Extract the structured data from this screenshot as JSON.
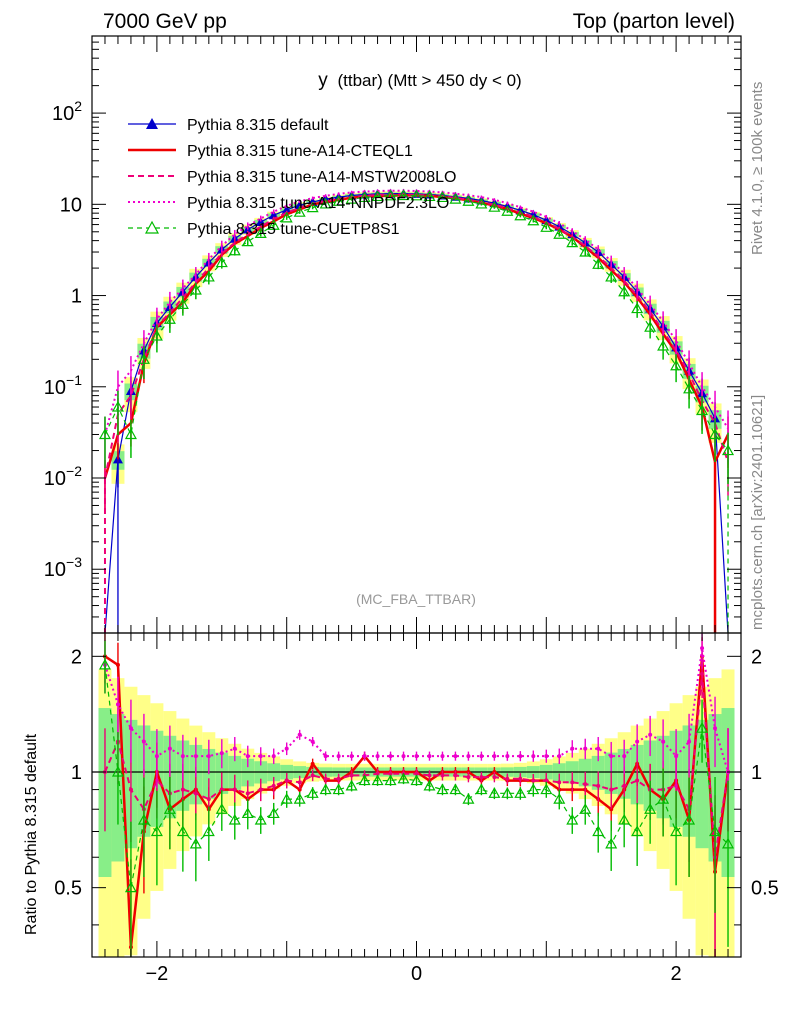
{
  "header": {
    "left": "7000 GeV pp",
    "right": "Top (parton level)"
  },
  "side_labels": {
    "rivet": "Rivet 4.1.0, ≥ 100k events",
    "mcplots": "mcplots.cern.ch [arXiv:2401.10621]"
  },
  "chart_data": {
    "type": "line",
    "title": "y (ttbar) (Mtt > 450 dy < 0)",
    "title_main": "y",
    "title_rest": "(ttbar) (Mtt > 450 dy < 0)",
    "watermark": "(MC_FBA_TTBAR)",
    "xlabel": "",
    "ylabel": "",
    "ratio_ylabel": "Ratio to Pythia 8.315 default",
    "xlim": [
      -2.5,
      2.5
    ],
    "ylim": [
      0.0002,
      700
    ],
    "yscale": "log",
    "ratio_ylim": [
      0.33,
      2.3
    ],
    "x_ticks": [
      -2,
      0,
      2
    ],
    "x_tick_labels": [
      "−2",
      "0",
      "2"
    ],
    "y_ticks": [
      0.001,
      0.01,
      0.1,
      1,
      10,
      100
    ],
    "y_tick_labels": [
      {
        "base": "10",
        "exp": "−3"
      },
      {
        "base": "10",
        "exp": "−2"
      },
      {
        "base": "10",
        "exp": "−1"
      },
      {
        "base": "1",
        "exp": ""
      },
      {
        "base": "10",
        "exp": ""
      },
      {
        "base": "10",
        "exp": "2"
      }
    ],
    "ratio_ticks": [
      0.5,
      1,
      2
    ],
    "ratio_tick_labels": [
      "0.5",
      "1",
      "2"
    ],
    "x": [
      -2.4,
      -2.3,
      -2.2,
      -2.1,
      -2.0,
      -1.9,
      -1.8,
      -1.7,
      -1.6,
      -1.5,
      -1.4,
      -1.3,
      -1.2,
      -1.1,
      -1.0,
      -0.9,
      -0.8,
      -0.7,
      -0.6,
      -0.5,
      -0.4,
      -0.3,
      -0.2,
      -0.1,
      0.0,
      0.1,
      0.2,
      0.3,
      0.4,
      0.5,
      0.6,
      0.7,
      0.8,
      0.9,
      1.0,
      1.1,
      1.2,
      1.3,
      1.4,
      1.5,
      1.6,
      1.7,
      1.8,
      1.9,
      2.0,
      2.1,
      2.2,
      2.3,
      2.4
    ],
    "series": [
      {
        "name": "Pythia 8.315 default",
        "color": "#0000cc",
        "style": "solid-triangle",
        "values": [
          0,
          0.016,
          0.09,
          0.25,
          0.5,
          0.75,
          1.1,
          1.6,
          2.3,
          3.2,
          4.2,
          5.3,
          6.4,
          7.6,
          8.7,
          9.8,
          10.6,
          11.4,
          12.0,
          12.5,
          12.8,
          13.0,
          13.1,
          13.1,
          13.0,
          12.8,
          12.5,
          12.1,
          11.6,
          11.0,
          10.3,
          9.5,
          8.6,
          7.7,
          6.7,
          5.7,
          4.7,
          3.8,
          3.0,
          2.2,
          1.6,
          1.1,
          0.72,
          0.46,
          0.27,
          0.15,
          0.085,
          0.045,
          0
        ]
      },
      {
        "name": "Pythia 8.315 tune-A14-CTEQL1",
        "color": "#ee0000",
        "style": "solid",
        "values": [
          0.01,
          0.03,
          0.04,
          0.18,
          0.45,
          0.62,
          0.85,
          1.35,
          1.85,
          2.8,
          3.7,
          4.5,
          5.5,
          6.5,
          7.8,
          8.8,
          10.0,
          10.6,
          11.2,
          11.8,
          12.2,
          12.3,
          12.4,
          12.6,
          12.5,
          12.4,
          12.0,
          11.6,
          11.1,
          10.4,
          9.7,
          8.9,
          7.9,
          7.1,
          6.2,
          5.3,
          4.4,
          3.4,
          2.6,
          1.9,
          1.4,
          0.95,
          0.62,
          0.38,
          0.24,
          0.12,
          0.06,
          0.015,
          0.03
        ]
      },
      {
        "name": "Pythia 8.315 tune-A14-MSTW2008LO",
        "color": "#ee0077",
        "style": "dashed",
        "values": [
          0.01,
          0.05,
          0.08,
          0.2,
          0.46,
          0.65,
          0.95,
          1.4,
          2.0,
          2.9,
          3.8,
          4.7,
          5.7,
          6.9,
          8.1,
          9.2,
          10.2,
          10.9,
          11.5,
          12.0,
          12.4,
          12.7,
          12.8,
          12.8,
          12.7,
          12.5,
          12.2,
          11.8,
          11.2,
          10.6,
          9.9,
          9.1,
          8.2,
          7.3,
          6.3,
          5.4,
          4.4,
          3.5,
          2.7,
          2.0,
          1.45,
          1.0,
          0.66,
          0.41,
          0.25,
          0.14,
          0.07,
          0.04,
          0.015
        ]
      },
      {
        "name": "Pythia 8.315 tune-A14-NNPDF2.3LO",
        "color": "#ee00cc",
        "style": "dotted",
        "values": [
          0.03,
          0.1,
          0.15,
          0.3,
          0.55,
          0.85,
          1.2,
          1.7,
          2.5,
          3.5,
          4.7,
          5.8,
          7.0,
          8.3,
          9.6,
          10.8,
          11.7,
          12.4,
          13.0,
          13.5,
          13.8,
          14.0,
          14.1,
          14.1,
          14.0,
          13.8,
          13.5,
          13.1,
          12.6,
          12.0,
          11.2,
          10.3,
          9.3,
          8.3,
          7.3,
          6.2,
          5.1,
          4.1,
          3.2,
          2.4,
          1.75,
          1.2,
          0.8,
          0.52,
          0.32,
          0.18,
          0.1,
          0.06,
          0.035
        ]
      },
      {
        "name": "Pythia 8.315 tune-CUETP8S1",
        "color": "#00bb00",
        "style": "dashed-triangle",
        "values": [
          0.03,
          0.06,
          0.03,
          0.2,
          0.36,
          0.55,
          0.8,
          1.15,
          1.6,
          2.3,
          3.1,
          3.9,
          4.8,
          5.9,
          7.1,
          8.2,
          9.2,
          10.1,
          10.8,
          11.4,
          11.9,
          12.2,
          12.4,
          12.5,
          12.4,
          12.2,
          11.9,
          11.4,
          10.8,
          10.1,
          9.3,
          8.4,
          7.5,
          6.6,
          5.6,
          4.7,
          3.8,
          3.0,
          2.2,
          1.6,
          1.1,
          0.72,
          0.45,
          0.28,
          0.17,
          0.095,
          0.055,
          0.03,
          0.02
        ]
      }
    ],
    "ratio_series": [
      {
        "name": "Pythia 8.315 tune-A14-CTEQL1",
        "values": [
          2.0,
          1.9,
          0.35,
          0.7,
          1.0,
          0.8,
          0.85,
          0.9,
          0.8,
          0.9,
          0.9,
          0.85,
          0.9,
          0.9,
          0.95,
          0.9,
          1.05,
          0.95,
          0.95,
          1.0,
          1.1,
          1.0,
          1.0,
          1.0,
          1.0,
          0.95,
          1.0,
          1.0,
          1.0,
          0.95,
          1.0,
          0.95,
          0.95,
          0.95,
          0.95,
          0.9,
          0.9,
          0.9,
          0.85,
          0.8,
          0.9,
          1.05,
          0.9,
          0.85,
          0.95,
          0.75,
          2.0,
          0.55,
          1.0
        ]
      },
      {
        "name": "Pythia 8.315 tune-A14-MSTW2008LO",
        "values": [
          1.0,
          1.2,
          0.9,
          0.8,
          0.95,
          0.88,
          0.9,
          0.88,
          0.85,
          0.9,
          0.9,
          0.88,
          0.9,
          0.92,
          0.95,
          0.94,
          0.98,
          0.96,
          0.96,
          0.98,
          0.98,
          0.99,
          0.99,
          0.99,
          0.99,
          0.98,
          0.98,
          0.98,
          0.97,
          0.97,
          0.97,
          0.96,
          0.96,
          0.95,
          0.95,
          0.94,
          0.94,
          0.93,
          0.92,
          0.9,
          0.92,
          0.95,
          0.9,
          0.9,
          0.92,
          0.8,
          1.8,
          0.6,
          1.0
        ]
      },
      {
        "name": "Pythia 8.315 tune-A14-NNPDF2.3LO",
        "values": [
          1.9,
          1.5,
          1.3,
          1.2,
          1.1,
          1.15,
          1.1,
          1.1,
          1.1,
          1.12,
          1.15,
          1.1,
          1.1,
          1.1,
          1.15,
          1.25,
          1.2,
          1.1,
          1.1,
          1.1,
          1.1,
          1.1,
          1.1,
          1.1,
          1.1,
          1.1,
          1.1,
          1.1,
          1.1,
          1.1,
          1.1,
          1.1,
          1.1,
          1.1,
          1.1,
          1.1,
          1.15,
          1.15,
          1.15,
          1.1,
          1.1,
          1.2,
          1.25,
          1.2,
          1.1,
          1.2,
          2.1,
          1.3,
          1.0
        ]
      },
      {
        "name": "Pythia 8.315 tune-CUETP8S1",
        "values": [
          1.9,
          1.0,
          0.5,
          0.75,
          0.7,
          0.8,
          0.7,
          0.65,
          0.7,
          0.8,
          0.75,
          0.78,
          0.75,
          0.78,
          0.85,
          0.85,
          0.88,
          0.9,
          0.9,
          0.92,
          0.95,
          0.95,
          0.95,
          0.96,
          0.95,
          0.92,
          0.9,
          0.9,
          0.85,
          0.9,
          0.88,
          0.88,
          0.88,
          0.9,
          0.9,
          0.85,
          0.75,
          0.8,
          0.7,
          0.65,
          0.75,
          0.7,
          0.8,
          0.85,
          0.7,
          0.75,
          1.3,
          0.7,
          0.65
        ]
      }
    ]
  }
}
